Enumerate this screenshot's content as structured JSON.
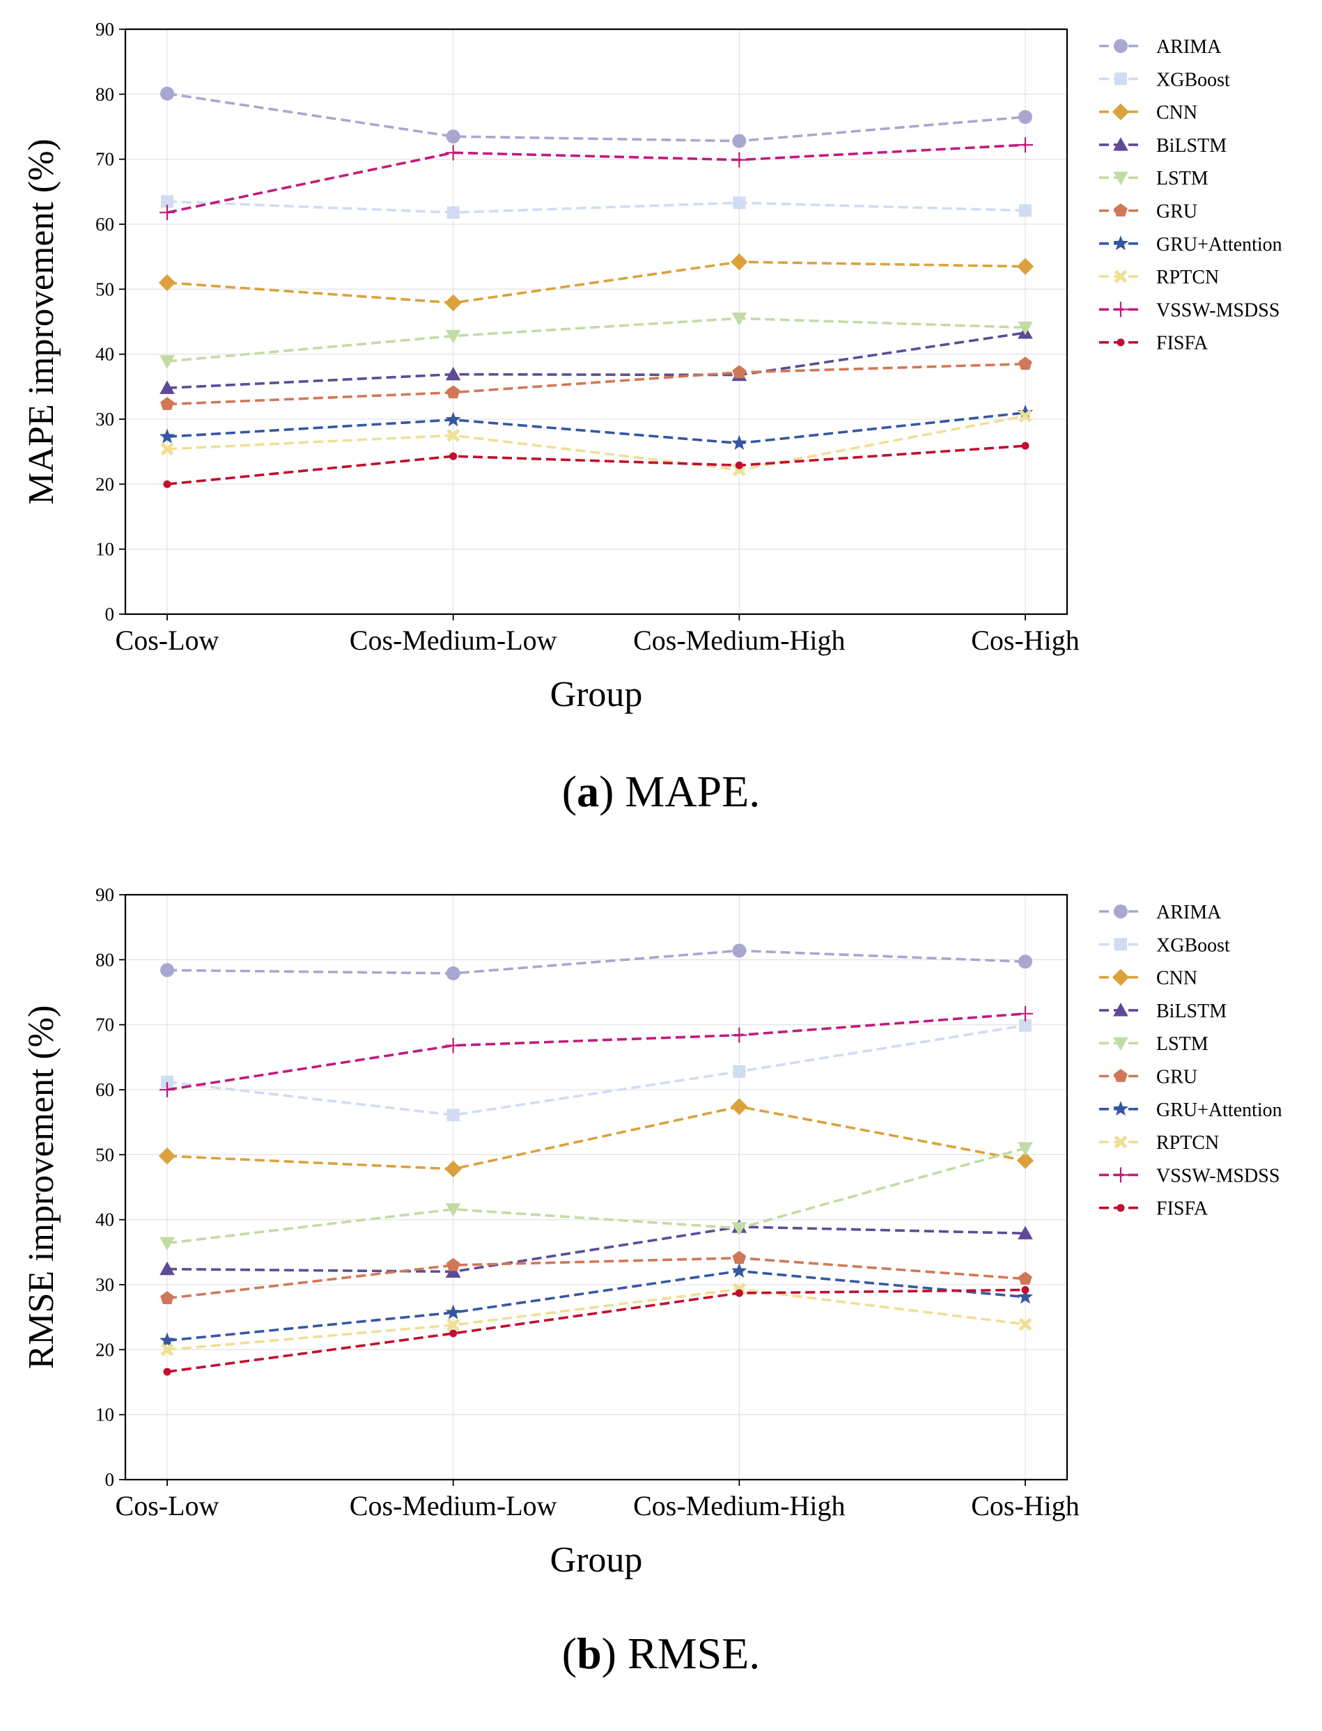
{
  "chart_data": [
    {
      "type": "line",
      "caption_letter": "a",
      "caption_text": "MAPE.",
      "xlabel": "Group",
      "ylabel": "MAPE improvement (%)",
      "ylim": [
        0,
        90
      ],
      "yticks": [
        0,
        10,
        20,
        30,
        40,
        50,
        60,
        70,
        80,
        90
      ],
      "grid": true,
      "legend": "right",
      "categories": [
        "Cos-Low",
        "Cos-Medium-Low",
        "Cos-Medium-High",
        "Cos-High"
      ],
      "series": [
        {
          "name": "ARIMA",
          "color": "#a9a6cf",
          "marker": "circle",
          "values": [
            80.1,
            73.5,
            72.8,
            76.5
          ]
        },
        {
          "name": "XGBoost",
          "color": "#cfdcf2",
          "marker": "square",
          "values": [
            63.5,
            61.8,
            63.3,
            62.1
          ]
        },
        {
          "name": "CNN",
          "color": "#dba13c",
          "marker": "diamond",
          "values": [
            51.0,
            47.9,
            54.2,
            53.5
          ]
        },
        {
          "name": "BiLSTM",
          "color": "#5e4a97",
          "marker": "triangle-up",
          "values": [
            34.8,
            36.9,
            36.8,
            43.3
          ]
        },
        {
          "name": "LSTM",
          "color": "#c2dba5",
          "marker": "triangle-down",
          "values": [
            38.9,
            42.8,
            45.5,
            44.1
          ]
        },
        {
          "name": "GRU",
          "color": "#d07757",
          "marker": "pentagon",
          "values": [
            32.3,
            34.1,
            37.2,
            38.5
          ]
        },
        {
          "name": "GRU+Attention",
          "color": "#3557a2",
          "marker": "star",
          "values": [
            27.3,
            29.9,
            26.3,
            31.0
          ]
        },
        {
          "name": "RPTCN",
          "color": "#efdf94",
          "marker": "x-filled",
          "values": [
            25.4,
            27.5,
            22.2,
            30.5
          ]
        },
        {
          "name": "VSSW-MSDSS",
          "color": "#c21a7d",
          "marker": "plus",
          "values": [
            61.8,
            71.0,
            69.9,
            72.2
          ]
        },
        {
          "name": "FISFA",
          "color": "#c20d2e",
          "marker": "dot",
          "values": [
            20.0,
            24.3,
            22.9,
            25.9
          ]
        }
      ]
    },
    {
      "type": "line",
      "caption_letter": "b",
      "caption_text": "RMSE.",
      "xlabel": "Group",
      "ylabel": "RMSE improvement (%)",
      "ylim": [
        0,
        90
      ],
      "yticks": [
        0,
        10,
        20,
        30,
        40,
        50,
        60,
        70,
        80,
        90
      ],
      "grid": true,
      "legend": "right",
      "categories": [
        "Cos-Low",
        "Cos-Medium-Low",
        "Cos-Medium-High",
        "Cos-High"
      ],
      "series": [
        {
          "name": "ARIMA",
          "color": "#a9a6cf",
          "marker": "circle",
          "values": [
            78.4,
            77.9,
            81.4,
            79.7
          ]
        },
        {
          "name": "XGBoost",
          "color": "#cfdcf2",
          "marker": "square",
          "values": [
            61.2,
            56.1,
            62.8,
            69.9
          ]
        },
        {
          "name": "CNN",
          "color": "#dba13c",
          "marker": "diamond",
          "values": [
            49.8,
            47.8,
            57.4,
            49.1
          ]
        },
        {
          "name": "BiLSTM",
          "color": "#5e4a97",
          "marker": "triangle-up",
          "values": [
            32.4,
            32.0,
            38.9,
            37.9
          ]
        },
        {
          "name": "LSTM",
          "color": "#c2dba5",
          "marker": "triangle-down",
          "values": [
            36.4,
            41.6,
            38.7,
            51.0
          ]
        },
        {
          "name": "GRU",
          "color": "#d07757",
          "marker": "pentagon",
          "values": [
            27.9,
            33.0,
            34.1,
            30.9
          ]
        },
        {
          "name": "GRU+Attention",
          "color": "#3557a2",
          "marker": "star",
          "values": [
            21.4,
            25.7,
            32.1,
            28.1
          ]
        },
        {
          "name": "RPTCN",
          "color": "#efdf94",
          "marker": "x-filled",
          "values": [
            20.0,
            23.8,
            29.3,
            23.9
          ]
        },
        {
          "name": "VSSW-MSDSS",
          "color": "#c21a7d",
          "marker": "plus",
          "values": [
            60.0,
            66.8,
            68.4,
            71.7
          ]
        },
        {
          "name": "FISFA",
          "color": "#c20d2e",
          "marker": "dot",
          "values": [
            16.6,
            22.5,
            28.7,
            29.2
          ]
        }
      ]
    }
  ]
}
